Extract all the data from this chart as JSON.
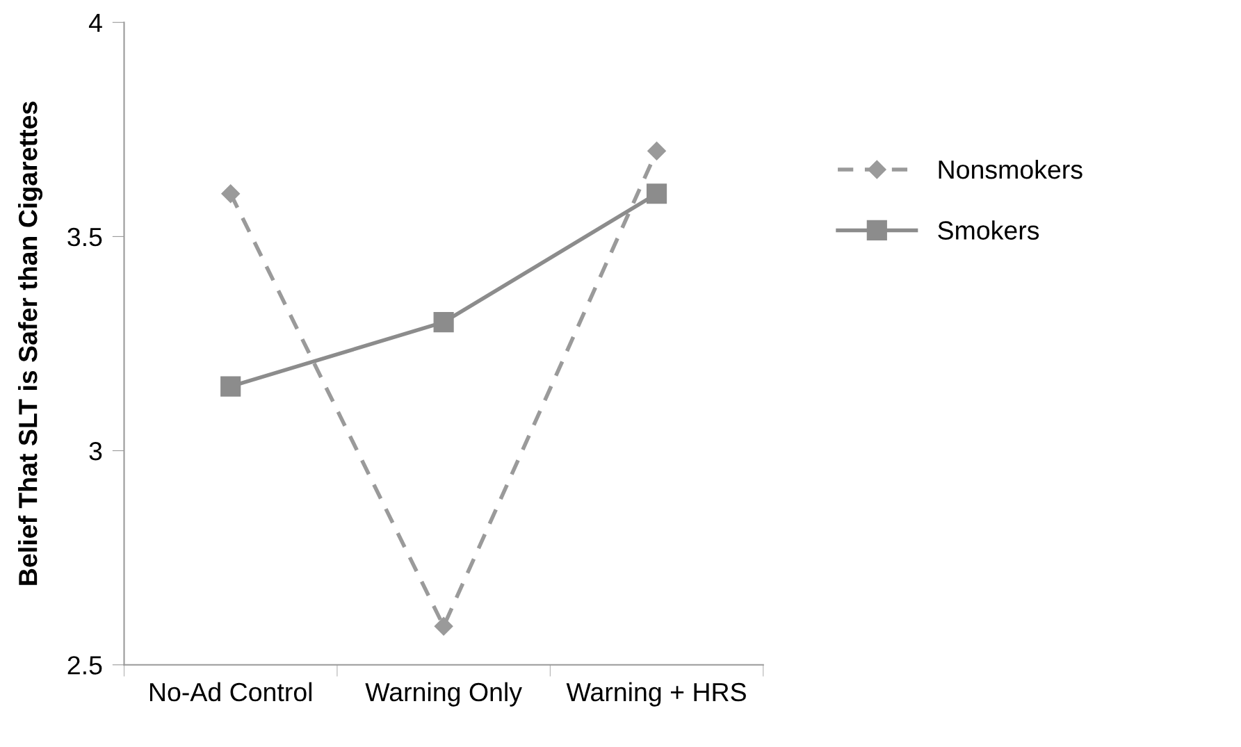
{
  "chart_data": {
    "type": "line",
    "ylabel": "Belief That SLT is Safer than Cigarettes",
    "categories": [
      "No-Ad Control",
      "Warning Only",
      "Warning + HRS"
    ],
    "series": [
      {
        "name": "Nonsmokers",
        "color": "#9a9a9a",
        "values": [
          3.6,
          2.59,
          3.7
        ],
        "marker": "diamond",
        "line_style": "dashed"
      },
      {
        "name": "Smokers",
        "color": "#8c8c8c",
        "values": [
          3.15,
          3.3,
          3.6
        ],
        "marker": "square",
        "line_style": "solid"
      }
    ],
    "ylim": [
      2.5,
      4
    ],
    "yticks": [
      2.5,
      3,
      3.5,
      4
    ],
    "grid": false,
    "legend": "right"
  }
}
